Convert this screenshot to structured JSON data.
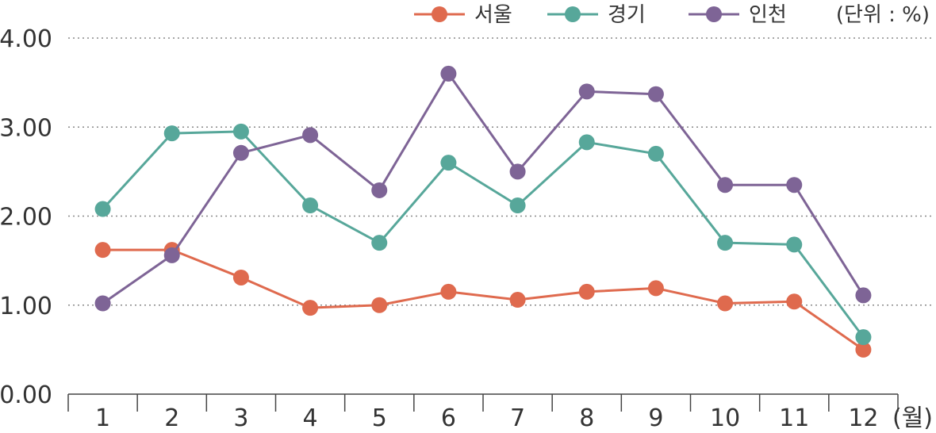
{
  "chart_data": {
    "type": "line",
    "categories": [
      "1",
      "2",
      "3",
      "4",
      "5",
      "6",
      "7",
      "8",
      "9",
      "10",
      "11",
      "12"
    ],
    "x_unit": "(월)",
    "unit": "(단위 : %)",
    "ylim": [
      0,
      4
    ],
    "yticks": [
      "0.00",
      "1.00",
      "2.00",
      "3.00",
      "4.00"
    ],
    "grid": true,
    "legend_position": "top-right",
    "series": [
      {
        "name": "서울",
        "color": "#DF6A4E",
        "values": [
          1.62,
          1.62,
          1.31,
          0.97,
          1.0,
          1.15,
          1.06,
          1.15,
          1.19,
          1.02,
          1.04,
          0.5
        ]
      },
      {
        "name": "경기",
        "color": "#57A79A",
        "values": [
          2.08,
          2.93,
          2.95,
          2.12,
          1.7,
          2.6,
          2.12,
          2.83,
          2.7,
          1.7,
          1.68,
          0.64
        ]
      },
      {
        "name": "인천",
        "color": "#7E6496",
        "values": [
          1.02,
          1.56,
          2.71,
          2.91,
          2.29,
          3.6,
          2.5,
          3.4,
          3.37,
          2.35,
          2.35,
          1.11
        ]
      }
    ]
  }
}
